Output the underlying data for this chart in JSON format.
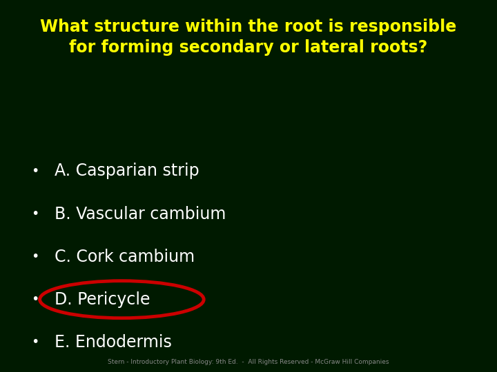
{
  "background_color": "#001a00",
  "title_line1": "What structure within the root is responsible",
  "title_line2": "for forming secondary or lateral roots?",
  "title_color": "#ffff00",
  "title_fontsize": 17,
  "options": [
    "A. Casparian strip",
    "B. Vascular cambium",
    "C. Cork cambium",
    "D. Pericycle",
    "E. Endodermis"
  ],
  "options_color": "#ffffff",
  "options_fontsize": 17,
  "bullet": "•",
  "highlighted_index": 3,
  "highlight_color": "#cc0000",
  "footer": "Stern - Introductory Plant Biology: 9th Ed.  -  All Rights Reserved - McGraw Hill Companies",
  "footer_color": "#888888",
  "footer_fontsize": 6.5
}
